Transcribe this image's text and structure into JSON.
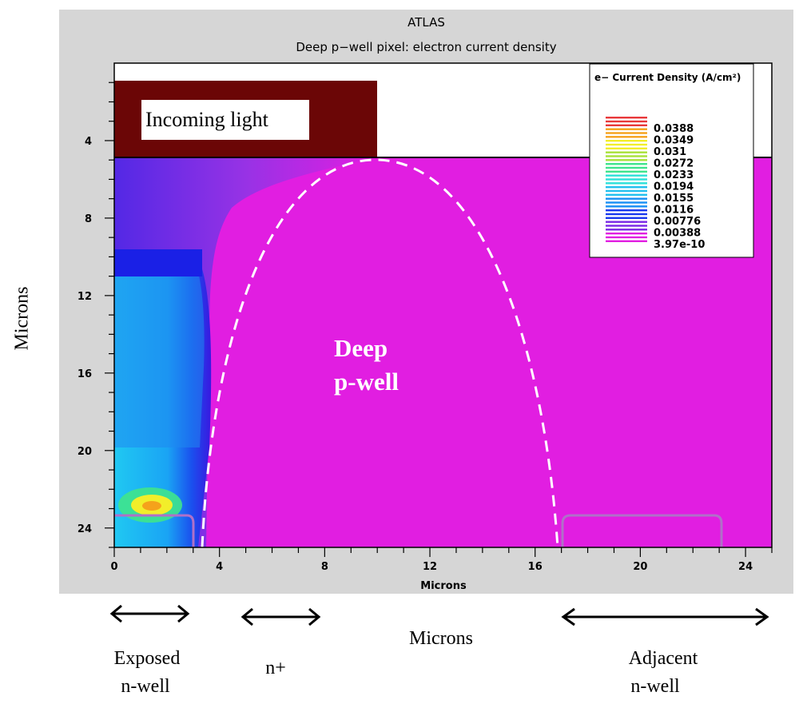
{
  "header": {
    "app_title": "ATLAS",
    "plot_title": "Deep p−well pixel: electron current density"
  },
  "annotations": {
    "incoming_light": "Incoming light",
    "deep_pwell_line1": "Deep",
    "deep_pwell_line2": "p-well",
    "outer_ylabel": "Microns",
    "outer_xlabel": "Microns",
    "exposed_line1": "Exposed",
    "exposed_line2": "n-well",
    "nplus": "n+",
    "adjacent_line1": "Adjacent",
    "adjacent_line2": "n-well"
  },
  "colors": {
    "substrate": "#e11ee1",
    "light_box": "#6b0606",
    "dashed_boundary": "#ffffff",
    "arrow": "#000000"
  },
  "chart_data": {
    "type": "heatmap",
    "title": "Deep p−well pixel: electron current density",
    "xlabel": "Microns",
    "ylabel": "",
    "xlim": [
      0,
      25
    ],
    "ylim": [
      25,
      0
    ],
    "y_inverted": true,
    "x_ticks": [
      0,
      4,
      8,
      12,
      16,
      20,
      24
    ],
    "x_tick_labels": [
      "0",
      "4",
      "8",
      "12",
      "16",
      "20",
      "24"
    ],
    "y_ticks": [
      4,
      8,
      12,
      16,
      20,
      24
    ],
    "y_tick_labels": [
      "4",
      "8",
      "12",
      "16",
      "20",
      "24"
    ],
    "surface_y": 5,
    "light_box": {
      "x": [
        0,
        10
      ],
      "y": [
        1,
        5
      ]
    },
    "legend": {
      "title": "e− Current Density (A/cm²)",
      "placement": "top-right",
      "levels": [
        {
          "label": "0.0388",
          "value": 0.0388,
          "color": "#e8383a"
        },
        {
          "label": "0.0349",
          "value": 0.0349,
          "color": "#f5a21b"
        },
        {
          "label": "0.031",
          "value": 0.031,
          "color": "#f2ee2a"
        },
        {
          "label": "0.0272",
          "value": 0.0272,
          "color": "#a8e23a"
        },
        {
          "label": "0.0233",
          "value": 0.0233,
          "color": "#3fe48c"
        },
        {
          "label": "0.0194",
          "value": 0.0194,
          "color": "#2ee0d8"
        },
        {
          "label": "0.0155",
          "value": 0.0155,
          "color": "#22c0ee"
        },
        {
          "label": "0.0116",
          "value": 0.0116,
          "color": "#1890f4"
        },
        {
          "label": "0.00776",
          "value": 0.00776,
          "color": "#1838ee"
        },
        {
          "label": "0.00388",
          "value": 0.00388,
          "color": "#7a28e6"
        },
        {
          "label": "3.97e-10",
          "value": 3.97e-10,
          "color": "#e11ee1"
        }
      ]
    },
    "regions": [
      {
        "name": "Exposed n-well",
        "x": [
          0,
          3
        ],
        "y_top": 23.3
      },
      {
        "name": "Adjacent n-well",
        "x": [
          17,
          23
        ],
        "y_top": 23.3
      }
    ],
    "depletion_boundary": {
      "x_left": 3.3,
      "x_peak": 10,
      "y_peak": 5,
      "x_right": 16.9,
      "y_bottom": 25
    }
  }
}
